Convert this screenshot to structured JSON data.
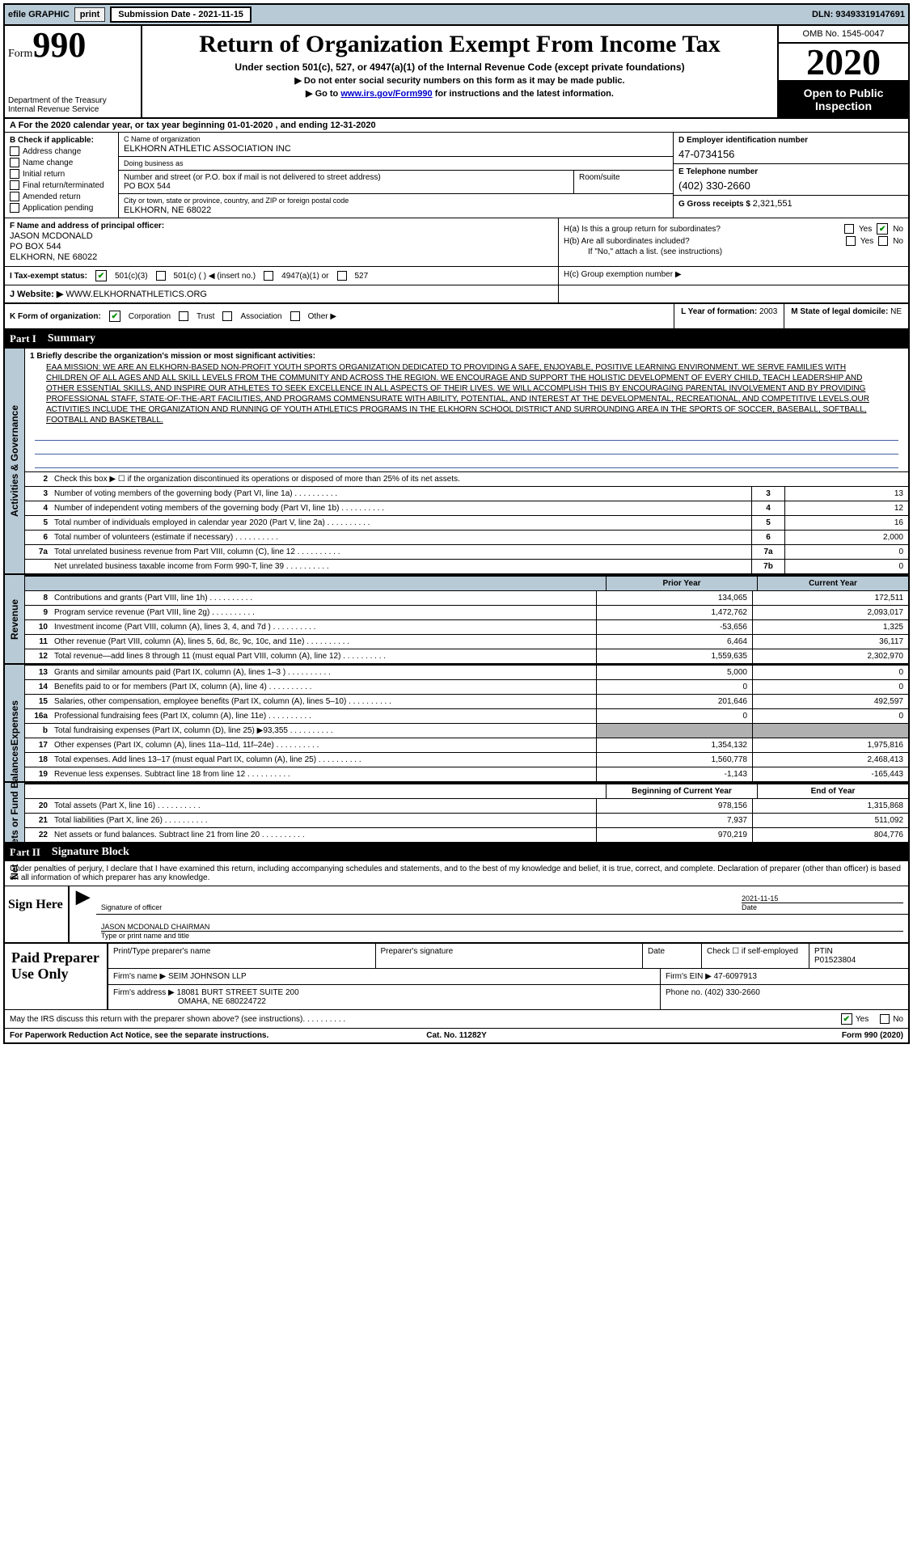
{
  "topbar": {
    "efile": "efile GRAPHIC",
    "print": "print",
    "submission": "Submission Date - 2021-11-15",
    "dln": "DLN: 93493319147691"
  },
  "formHeader": {
    "formLabel": "Form",
    "formNum": "990",
    "dept1": "Department of the Treasury",
    "dept2": "Internal Revenue Service",
    "title": "Return of Organization Exempt From Income Tax",
    "subline": "Under section 501(c), 527, or 4947(a)(1) of the Internal Revenue Code (except private foundations)",
    "arrow1": "▶ Do not enter social security numbers on this form as it may be made public.",
    "arrow2_pre": "▶ Go to ",
    "arrow2_link": "www.irs.gov/Form990",
    "arrow2_post": " for instructions and the latest information.",
    "omb": "OMB No. 1545-0047",
    "year": "2020",
    "openPublic1": "Open to Public",
    "openPublic2": "Inspection"
  },
  "period": "A   For the 2020 calendar year, or tax year beginning 01-01-2020    , and ending 12-31-2020",
  "colB": {
    "heading": "B Check if applicable:",
    "addressChange": "Address change",
    "nameChange": "Name change",
    "initialReturn": "Initial return",
    "finalReturn": "Final return/terminated",
    "amended": "Amended return",
    "application": "Application pending"
  },
  "colC": {
    "nameLbl": "C Name of organization",
    "nameVal": "ELKHORN ATHLETIC ASSOCIATION INC",
    "dbaLbl": "Doing business as",
    "addrLbl": "Number and street (or P.O. box if mail is not delivered to street address)",
    "addrVal": "PO BOX 544",
    "roomLbl": "Room/suite",
    "cityLbl": "City or town, state or province, country, and ZIP or foreign postal code",
    "cityVal": "ELKHORN, NE  68022"
  },
  "colD": {
    "einLbl": "D Employer identification number",
    "einVal": "47-0734156",
    "telLbl": "E Telephone number",
    "telVal": "(402) 330-2660",
    "grossLbl": "G Gross receipts $",
    "grossVal": "2,321,551"
  },
  "officer": {
    "lbl": "F  Name and address of principal officer:",
    "name": "JASON MCDONALD",
    "addr1": "PO BOX 544",
    "addr2": "ELKHORN, NE  68022"
  },
  "hblock": {
    "ha": "H(a)  Is this a group return for subordinates?",
    "hb": "H(b)  Are all subordinates included?",
    "hbnote": "If \"No,\" attach a list. (see instructions)",
    "hc": "H(c)  Group exemption number ▶",
    "yes": "Yes",
    "no": "No"
  },
  "taxStatus": {
    "lbl": "I   Tax-exempt status:",
    "c3": "501(c)(3)",
    "c": "501(c) (  ) ◀ (insert no.)",
    "a1": "4947(a)(1) or",
    "s527": "527"
  },
  "website": {
    "lbl": "J   Website: ▶",
    "val": "WWW.ELKHORNATHLETICS.ORG"
  },
  "kform": {
    "lbl": "K Form of organization:",
    "corp": "Corporation",
    "trust": "Trust",
    "assoc": "Association",
    "other": "Other ▶",
    "lyear_lbl": "L Year of formation:",
    "lyear_val": "2003",
    "mstate_lbl": "M State of legal domicile:",
    "mstate_val": "NE"
  },
  "part1": {
    "label": "Part I",
    "title": "Summary"
  },
  "mission": {
    "lineLabel": "1  Briefly describe the organization's mission or most significant activities:",
    "text": "EAA MISSION: WE ARE AN ELKHORN-BASED NON-PROFIT YOUTH SPORTS ORGANIZATION DEDICATED TO PROVIDING A SAFE, ENJOYABLE, POSITIVE LEARNING ENVIRONMENT. WE SERVE FAMILIES WITH CHILDREN OF ALL AGES AND ALL SKILL LEVELS FROM THE COMMUNITY AND ACROSS THE REGION. WE ENCOURAGE AND SUPPORT THE HOLISTIC DEVELOPMENT OF EVERY CHILD, TEACH LEADERSHIP AND OTHER ESSENTIAL SKILLS, AND INSPIRE OUR ATHLETES TO SEEK EXCELLENCE IN ALL ASPECTS OF THEIR LIVES. WE WILL ACCOMPLISH THIS BY ENCOURAGING PARENTAL INVOLVEMENT AND BY PROVIDING PROFESSIONAL STAFF, STATE-OF-THE-ART FACILITIES, AND PROGRAMS COMMENSURATE WITH ABILITY, POTENTIAL, AND INTEREST AT THE DEVELOPMENTAL, RECREATIONAL, AND COMPETITIVE LEVELS.OUR ACTIVITIES INCLUDE THE ORGANIZATION AND RUNNING OF YOUTH ATHLETICS PROGRAMS IN THE ELKHORN SCHOOL DISTRICT AND SURROUNDING AREA IN THE SPORTS OF SOCCER, BASEBALL, SOFTBALL, FOOTBALL AND BASKETBALL."
  },
  "activities": {
    "tab": "Activities & Governance",
    "line2": "Check this box ▶ ☐ if the organization discontinued its operations or disposed of more than 25% of its net assets.",
    "lines": [
      {
        "n": "3",
        "label": "Number of voting members of the governing body (Part VI, line 1a)",
        "box": "3",
        "val": "13"
      },
      {
        "n": "4",
        "label": "Number of independent voting members of the governing body (Part VI, line 1b)",
        "box": "4",
        "val": "12"
      },
      {
        "n": "5",
        "label": "Total number of individuals employed in calendar year 2020 (Part V, line 2a)",
        "box": "5",
        "val": "16"
      },
      {
        "n": "6",
        "label": "Total number of volunteers (estimate if necessary)",
        "box": "6",
        "val": "2,000"
      },
      {
        "n": "7a",
        "label": "Total unrelated business revenue from Part VIII, column (C), line 12",
        "box": "7a",
        "val": "0"
      },
      {
        "n": "",
        "label": "Net unrelated business taxable income from Form 990-T, line 39",
        "box": "7b",
        "val": "0"
      }
    ]
  },
  "colHeaders": {
    "prior": "Prior Year",
    "current": "Current Year"
  },
  "revenue": {
    "tab": "Revenue",
    "lines": [
      {
        "n": "8",
        "label": "Contributions and grants (Part VIII, line 1h)",
        "prev": "134,065",
        "curr": "172,511"
      },
      {
        "n": "9",
        "label": "Program service revenue (Part VIII, line 2g)",
        "prev": "1,472,762",
        "curr": "2,093,017"
      },
      {
        "n": "10",
        "label": "Investment income (Part VIII, column (A), lines 3, 4, and 7d )",
        "prev": "-53,656",
        "curr": "1,325"
      },
      {
        "n": "11",
        "label": "Other revenue (Part VIII, column (A), lines 5, 6d, 8c, 9c, 10c, and 11e)",
        "prev": "6,464",
        "curr": "36,117"
      },
      {
        "n": "12",
        "label": "Total revenue—add lines 8 through 11 (must equal Part VIII, column (A), line 12)",
        "prev": "1,559,635",
        "curr": "2,302,970"
      }
    ]
  },
  "expenses": {
    "tab": "Expenses",
    "lines": [
      {
        "n": "13",
        "label": "Grants and similar amounts paid (Part IX, column (A), lines 1–3 )",
        "prev": "5,000",
        "curr": "0"
      },
      {
        "n": "14",
        "label": "Benefits paid to or for members (Part IX, column (A), line 4)",
        "prev": "0",
        "curr": "0"
      },
      {
        "n": "15",
        "label": "Salaries, other compensation, employee benefits (Part IX, column (A), lines 5–10)",
        "prev": "201,646",
        "curr": "492,597"
      },
      {
        "n": "16a",
        "label": "Professional fundraising fees (Part IX, column (A), line 11e)",
        "prev": "0",
        "curr": "0"
      },
      {
        "n": "b",
        "label": "Total fundraising expenses (Part IX, column (D), line 25) ▶93,355",
        "prev": "",
        "curr": "",
        "grey": true
      },
      {
        "n": "17",
        "label": "Other expenses (Part IX, column (A), lines 11a–11d, 11f–24e)",
        "prev": "1,354,132",
        "curr": "1,975,816"
      },
      {
        "n": "18",
        "label": "Total expenses. Add lines 13–17 (must equal Part IX, column (A), line 25)",
        "prev": "1,560,778",
        "curr": "2,468,413"
      },
      {
        "n": "19",
        "label": "Revenue less expenses. Subtract line 18 from line 12",
        "prev": "-1,143",
        "curr": "-165,443"
      }
    ]
  },
  "netAssets": {
    "tab": "Net Assets or Fund Balances",
    "headers": {
      "prev": "Beginning of Current Year",
      "curr": "End of Year"
    },
    "lines": [
      {
        "n": "20",
        "label": "Total assets (Part X, line 16)",
        "prev": "978,156",
        "curr": "1,315,868"
      },
      {
        "n": "21",
        "label": "Total liabilities (Part X, line 26)",
        "prev": "7,937",
        "curr": "511,092"
      },
      {
        "n": "22",
        "label": "Net assets or fund balances. Subtract line 21 from line 20",
        "prev": "970,219",
        "curr": "804,776"
      }
    ]
  },
  "part2": {
    "label": "Part II",
    "title": "Signature Block"
  },
  "sigDisclaimer": "Under penalties of perjury, I declare that I have examined this return, including accompanying schedules and statements, and to the best of my knowledge and belief, it is true, correct, and complete. Declaration of preparer (other than officer) is based on all information of which preparer has any knowledge.",
  "signHere": {
    "label": "Sign Here",
    "sigOfficer": "Signature of officer",
    "date": "Date",
    "dateVal": "2021-11-15",
    "nameTitle": "JASON MCDONALD  CHAIRMAN",
    "typeLabel": "Type or print name and title"
  },
  "preparer": {
    "label": "Paid Preparer Use Only",
    "printName": "Print/Type preparer's name",
    "sig": "Preparer's signature",
    "dateLbl": "Date",
    "checkSelf": "Check ☐ if self-employed",
    "ptinLbl": "PTIN",
    "ptinVal": "P01523804",
    "firmName": "Firm's name    ▶ SEIM JOHNSON LLP",
    "firmEinLbl": "Firm's EIN ▶",
    "firmEinVal": "47-6097913",
    "firmAddr1": "Firm's address ▶ 18081 BURT STREET SUITE 200",
    "firmAddr2": "OMAHA, NE  680224722",
    "phoneLbl": "Phone no.",
    "phoneVal": "(402) 330-2660"
  },
  "bottom": {
    "discuss": "May the IRS discuss this return with the preparer shown above? (see instructions)",
    "yes": "Yes",
    "no": "No"
  },
  "footer": {
    "left": "For Paperwork Reduction Act Notice, see the separate instructions.",
    "center": "Cat. No. 11282Y",
    "right": "Form 990 (2020)"
  },
  "style": {
    "blueBg": "#b8cad6",
    "greyBg": "#b0b0b0",
    "black": "#000000",
    "linkColor": "#0000cc",
    "checkGreen": "#009000"
  }
}
